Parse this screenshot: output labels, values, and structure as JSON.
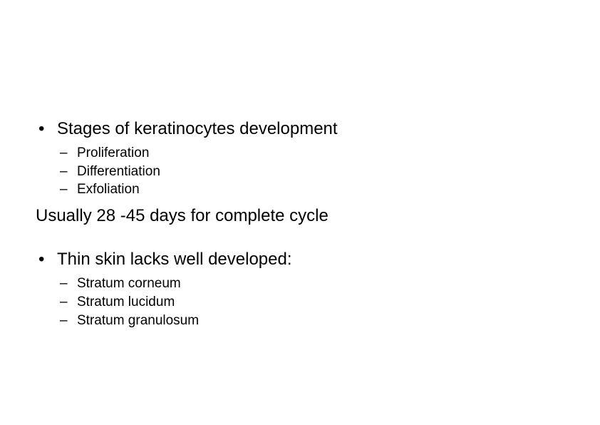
{
  "slide": {
    "background_color": "#ffffff",
    "text_color": "#000000",
    "font_family": "Arial",
    "l1_fontsize": 24,
    "l2_fontsize": 19,
    "l1_marker": "•",
    "l2_marker": "–",
    "section1": {
      "heading": "Stages of keratinocytes development",
      "items": [
        "Proliferation",
        "Differentiation",
        "Exfoliation"
      ]
    },
    "middle_text": "Usually 28 -45 days for complete cycle",
    "section2": {
      "heading": "Thin skin lacks well developed:",
      "items": [
        "Stratum corneum",
        "Stratum lucidum",
        "Stratum granulosum"
      ]
    }
  }
}
